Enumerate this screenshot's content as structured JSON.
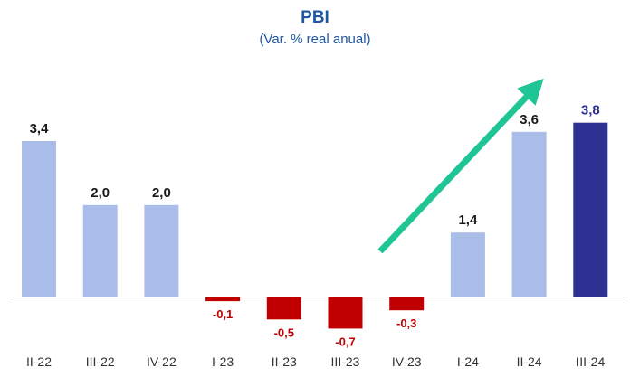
{
  "chart_data": {
    "type": "bar",
    "title": "PBI",
    "subtitle": "(Var. % real anual)",
    "categories": [
      "II-22",
      "III-22",
      "IV-22",
      "I-23",
      "II-23",
      "III-23",
      "IV-23",
      "I-24",
      "II-24",
      "III-24"
    ],
    "values": [
      3.4,
      2.0,
      2.0,
      -0.1,
      -0.5,
      -0.7,
      -0.3,
      1.4,
      3.6,
      3.8
    ],
    "value_labels": [
      "3,4",
      "2,0",
      "2,0",
      "-0,1",
      "-0,5",
      "-0,7",
      "-0,3",
      "1,4",
      "3,6",
      "3,8"
    ],
    "xlabel": "",
    "ylabel": "",
    "ylim": [
      -1.0,
      4.5
    ],
    "grid": false,
    "legend": "none",
    "trend_arrow": "upward",
    "colors": {
      "positive": "#a9bde8",
      "negative": "#c00000",
      "highlight": "#2e3192",
      "arrow": "#1fc595",
      "label_positive": "#1a1a1a",
      "label_negative": "#c00000",
      "label_highlight": "#2e3192",
      "title": "#1f56a3",
      "axis": "#999999"
    }
  }
}
